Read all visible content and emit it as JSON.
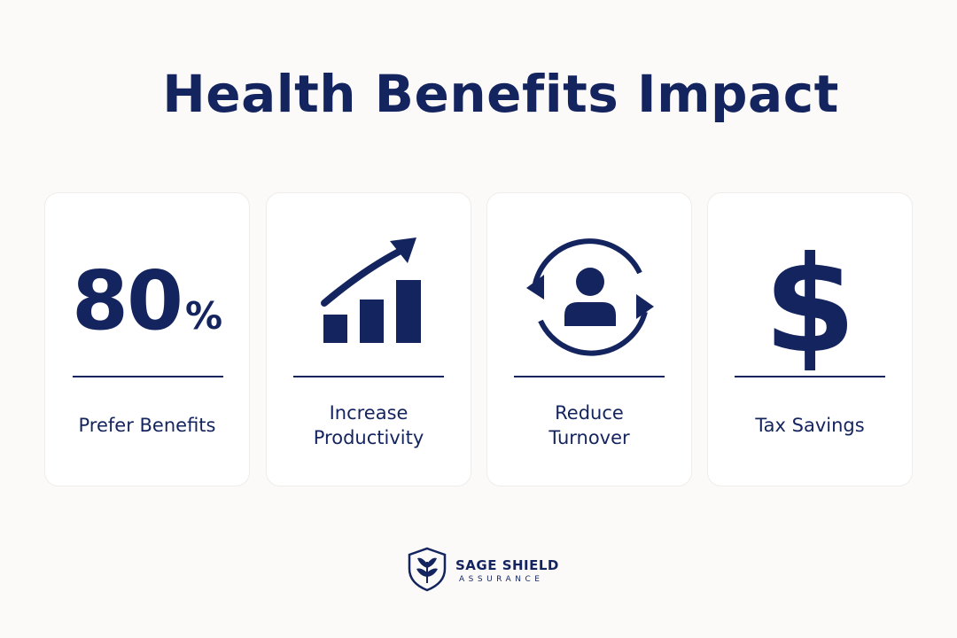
{
  "header": {
    "title": "Health Benefits Impact"
  },
  "cards": [
    {
      "stat": "80",
      "stat_suffix": "%",
      "label": "Prefer Benefits"
    },
    {
      "label": "Increase Productivity"
    },
    {
      "label": "Reduce Turnover"
    },
    {
      "symbol": "$",
      "label": "Tax Savings"
    }
  ],
  "logo": {
    "name": "SAGE SHIELD",
    "tagline": "ASSURANCE"
  }
}
